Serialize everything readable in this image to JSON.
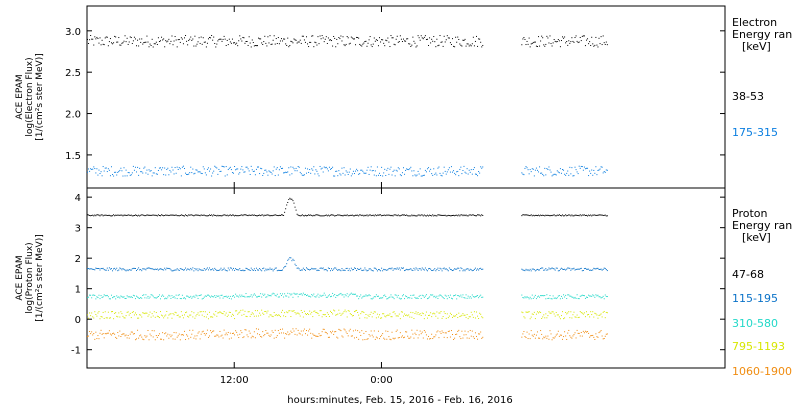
{
  "chart_data": [
    {
      "type": "scatter",
      "panel": "electron",
      "ylabel": [
        "ACE EPAM",
        "log(Electron Flux)",
        "[1/(cm²s ster MeV)]"
      ],
      "ylim": [
        1.1,
        3.3
      ],
      "yticks": [
        1.5,
        2.0,
        2.5,
        3.0
      ],
      "ytick_labels": [
        "1.5",
        "2.0",
        "2.5",
        "3.0"
      ],
      "legend_title": [
        "Electron",
        "Energy ran",
        "[keV]"
      ],
      "series": [
        {
          "name": "38-53",
          "color": "#000000",
          "level": 2.88,
          "jitter": 0.07,
          "x": [
            [
              0,
              32.3
            ],
            [
              35.4,
              42.4
            ]
          ]
        },
        {
          "name": "175-315",
          "color": "#0a7ee0",
          "level": 1.31,
          "jitter": 0.06,
          "x": [
            [
              0,
              32.3
            ],
            [
              35.4,
              42.4
            ]
          ]
        }
      ]
    },
    {
      "type": "scatter",
      "panel": "proton",
      "ylabel": [
        "ACE EPAM",
        "log(Proton Flux)",
        "[1/(cm²s ster MeV)]"
      ],
      "ylim": [
        -1.6,
        4.3
      ],
      "yticks": [
        -1,
        0,
        1,
        2,
        3,
        4
      ],
      "ytick_labels": [
        "-1",
        "0",
        "1",
        "2",
        "3",
        "4"
      ],
      "legend_title": [
        "Proton",
        "Energy ran",
        "[keV]"
      ],
      "series": [
        {
          "name": "47-68",
          "color": "#000000",
          "level": 3.42,
          "jitter": 0.02,
          "x": [
            [
              0,
              32.3
            ],
            [
              35.4,
              42.4
            ]
          ]
        },
        {
          "name": "115-195",
          "color": "#0a72c8",
          "level": 1.65,
          "jitter": 0.05,
          "x": [
            [
              0,
              32.3
            ],
            [
              35.4,
              42.4
            ]
          ]
        },
        {
          "name": "310-580",
          "color": "#22d8c8",
          "level": 0.75,
          "jitter": 0.07,
          "x": [
            [
              0,
              32.3
            ],
            [
              35.4,
              42.4
            ]
          ]
        },
        {
          "name": "795-1193",
          "color": "#d7e600",
          "level": 0.15,
          "jitter": 0.12,
          "x": [
            [
              0,
              32.3
            ],
            [
              35.4,
              42.4
            ]
          ]
        },
        {
          "name": "1060-1900",
          "color": "#f08c10",
          "level": -0.5,
          "jitter": 0.16,
          "x": [
            [
              0,
              32.3
            ],
            [
              35.4,
              42.4
            ]
          ]
        }
      ]
    }
  ],
  "x_axis": {
    "unit": "hours since Feb. 15, 2016 00:00",
    "xlim": [
      0,
      52
    ],
    "ticks": [
      12,
      24
    ],
    "tick_labels": [
      "12:00",
      "0:00"
    ],
    "xlabel": "hours:minutes, Feb. 15, 2016 - Feb. 16, 2016"
  }
}
